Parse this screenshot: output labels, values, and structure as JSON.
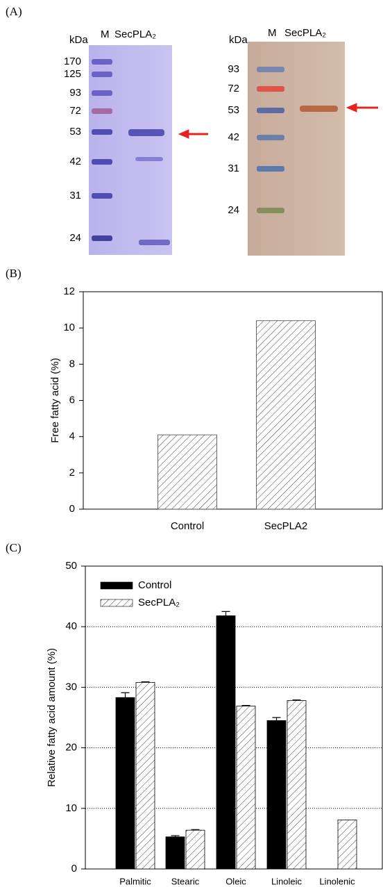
{
  "panel_labels": [
    "(A)",
    "(B)",
    "(C)"
  ],
  "gels": [
    {
      "unit": "kDa",
      "lanes": [
        "M",
        "SecPLA₂"
      ],
      "markers": [
        170,
        125,
        93,
        72,
        53,
        42,
        31,
        24
      ]
    },
    {
      "unit": "kDa",
      "lanes": [
        "M",
        "SecPLA₂"
      ],
      "markers": [
        93,
        72,
        53,
        42,
        31,
        24
      ]
    }
  ],
  "chart_data": [
    {
      "type": "bar",
      "y_label": "Free fatty acid (%)",
      "categories": [
        "Control",
        "SecPLA2"
      ],
      "values": [
        4.1,
        10.4
      ],
      "color": "#444444",
      "fill": "hatch",
      "ylim": [
        0,
        12
      ],
      "yticks": [
        0,
        2,
        4,
        6,
        8,
        10,
        12
      ]
    },
    {
      "type": "bar",
      "y_label": "Relative fatty acid amount (%)",
      "categories": [
        "Palmitic",
        "Stearic",
        "Oleic",
        "Linoleic",
        "Linolenic"
      ],
      "series": [
        {
          "name": "Control",
          "color": "#000000",
          "fill": "solid",
          "values": [
            28.3,
            5.3,
            41.8,
            24.5,
            null
          ],
          "errors": [
            0.8,
            0.2,
            0.7,
            0.5,
            null
          ]
        },
        {
          "name": "SecPLA₂",
          "color": "#444444",
          "fill": "hatch",
          "values": [
            30.8,
            6.4,
            26.9,
            27.8,
            8.1
          ],
          "errors": [
            0.1,
            0.1,
            0.1,
            0.1,
            null
          ]
        }
      ],
      "ylim": [
        0,
        50
      ],
      "yticks": [
        0,
        10,
        20,
        30,
        40,
        50
      ],
      "grid": "dotted",
      "legend": "top-left"
    }
  ]
}
